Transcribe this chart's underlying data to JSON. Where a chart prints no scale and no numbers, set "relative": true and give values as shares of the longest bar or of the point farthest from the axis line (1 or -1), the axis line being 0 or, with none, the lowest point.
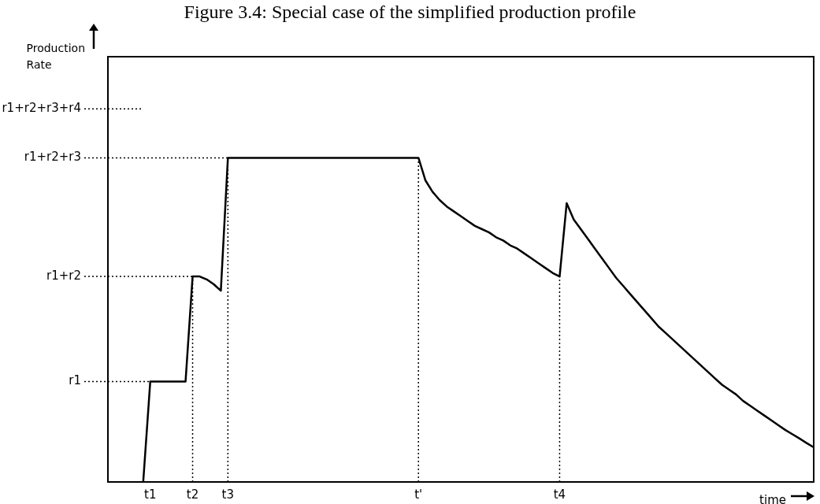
{
  "chart_data": {
    "type": "line",
    "title": "Figure 3.4: Special case of the simplified production profile",
    "xlabel": "time",
    "annotations": [
      "Production Rate"
    ],
    "relative": true,
    "color": "#000000",
    "line_style": "solid",
    "marker": "none",
    "grid": false,
    "legend": false,
    "categories": [
      null,
      null,
      null,
      null,
      null,
      null,
      "t1",
      null,
      null,
      null,
      null,
      null,
      "t2",
      null,
      null,
      null,
      null,
      "t3",
      null,
      null,
      null,
      null,
      null,
      null,
      null,
      null,
      null,
      null,
      null,
      null,
      null,
      null,
      null,
      null,
      null,
      null,
      null,
      null,
      null,
      null,
      null,
      null,
      null,
      null,
      "t'",
      null,
      null,
      null,
      null,
      null,
      null,
      null,
      null,
      null,
      null,
      null,
      null,
      null,
      null,
      null,
      null,
      null,
      null,
      null,
      "t4",
      null,
      null,
      null,
      null,
      null,
      null,
      null,
      null,
      null,
      null,
      null,
      null,
      null,
      null,
      null,
      null,
      null,
      null,
      null,
      null,
      null,
      null,
      null,
      null,
      null,
      null,
      null,
      null,
      null,
      null,
      null,
      null,
      null,
      null,
      null,
      null
    ],
    "values": [
      null,
      null,
      null,
      null,
      null,
      0,
      0.31,
      0.31,
      0.31,
      0.31,
      0.31,
      0.31,
      0.634,
      0.634,
      0.625,
      0.61,
      0.59,
      1,
      1,
      1,
      1,
      1,
      1,
      1,
      1,
      1,
      1,
      1,
      1,
      1,
      1,
      1,
      1,
      1,
      1,
      1,
      1,
      1,
      1,
      1,
      1,
      1,
      1,
      1,
      1,
      0.93,
      0.895,
      0.87,
      0.85,
      0.835,
      0.82,
      0.805,
      0.79,
      0.78,
      0.77,
      0.755,
      0.745,
      0.73,
      0.72,
      0.705,
      0.69,
      0.675,
      0.66,
      0.645,
      0.634,
      0.86,
      0.81,
      0.78,
      0.75,
      0.72,
      0.69,
      0.66,
      0.63,
      0.605,
      0.58,
      0.555,
      0.53,
      0.505,
      0.48,
      0.46,
      0.44,
      0.42,
      0.4,
      0.38,
      0.36,
      0.34,
      0.32,
      0.3,
      0.285,
      0.27,
      0.25,
      0.235,
      0.22,
      0.205,
      0.19,
      0.175,
      0.16,
      0.147,
      0.134,
      0.12,
      0.107
    ],
    "ref_lines": [
      {
        "axis": "y",
        "value": 0.31,
        "label": "r1",
        "line_style": "dotted"
      },
      {
        "axis": "y",
        "value": 0.634,
        "label": "r1+r2",
        "line_style": "dotted"
      },
      {
        "axis": "y",
        "value": 1,
        "label": "r1+r2+r3",
        "line_style": "dotted"
      },
      {
        "axis": "y",
        "value": 1.151,
        "label": "r1+r2+r3+r4",
        "line_style": "dotted"
      },
      {
        "axis": "x",
        "value": "t2",
        "line_style": "dotted"
      },
      {
        "axis": "x",
        "value": "t3",
        "line_style": "dotted"
      },
      {
        "axis": "x",
        "value": "t'",
        "line_style": "dotted"
      },
      {
        "axis": "x",
        "value": "t4",
        "line_style": "dotted"
      }
    ]
  }
}
